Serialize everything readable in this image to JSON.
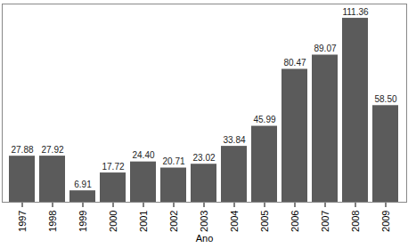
{
  "chart_data": {
    "type": "bar",
    "x_label": "Ano",
    "categories": [
      "1997",
      "1998",
      "1999",
      "2000",
      "2001",
      "2002",
      "2003",
      "2004",
      "2005",
      "2006",
      "2007",
      "2008",
      "2009"
    ],
    "values": [
      27.88,
      27.92,
      6.91,
      17.72,
      24.4,
      20.71,
      23.02,
      33.84,
      45.99,
      80.47,
      89.07,
      111.36,
      58.5
    ],
    "value_labels": [
      "27.88",
      "27.92",
      "6.91",
      "17.72",
      "24.40",
      "20.71",
      "23.02",
      "33.84",
      "45.99",
      "80.47",
      "89.07",
      "111.36",
      "58.50"
    ],
    "color": "#5b5b5b",
    "ylim": [
      0,
      120
    ],
    "data_labels": true,
    "tick_labels": "x"
  }
}
